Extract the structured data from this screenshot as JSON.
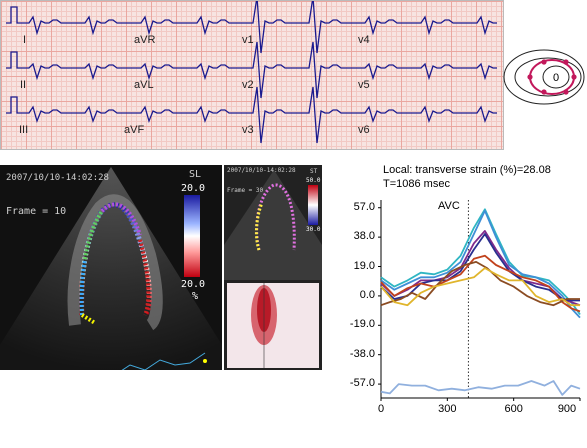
{
  "ecg": {
    "leads": [
      "I",
      "aVR",
      "v1",
      "v4",
      "II",
      "aVL",
      "v2",
      "v5",
      "III",
      "aVF",
      "v3",
      "v6"
    ]
  },
  "orientation_icon": {
    "label": "0"
  },
  "echo_left": {
    "timestamp": "2007/10/10-14:02:28",
    "frame": "Frame = 10",
    "scale_label": "SL",
    "scale_top": "20.0",
    "scale_bottom": "20.0",
    "scale_unit": "%"
  },
  "echo_right": {
    "timestamp": "2007/10/10-14:02:28",
    "frame": "Frame = 30",
    "scale_label": "ST",
    "scale_top": "50.0",
    "scale_bottom": "30.0"
  },
  "strain_plot": {
    "header_line1": "Local: transverse strain (%)=28.08",
    "header_line2": "T=1086 msec",
    "marker_label": "AVC"
  },
  "chart_data": {
    "type": "line",
    "title": "Local: transverse strain (%)=28.08",
    "xlabel": "",
    "ylabel": "",
    "xlim": [
      0,
      900
    ],
    "ylim": [
      -66,
      62
    ],
    "yticks": [
      57.0,
      38.0,
      19.0,
      0.0,
      -19.0,
      -38.0,
      -57.0
    ],
    "ytick_labels": [
      "57.0",
      "38.0",
      "19.0",
      "0.0",
      "-19.0",
      "-38.0",
      "-57.0"
    ],
    "xticks": [
      0,
      300,
      600,
      900
    ],
    "avc_x": 395,
    "series": [
      {
        "color": "#2fb6c3",
        "x": [
          0,
          60,
          120,
          180,
          240,
          300,
          360,
          420,
          470,
          520,
          580,
          640,
          700,
          760,
          820,
          860,
          900
        ],
        "y": [
          12,
          6,
          10,
          15,
          14,
          17,
          26,
          44,
          56,
          40,
          22,
          13,
          12,
          10,
          2,
          -4,
          -12
        ]
      },
      {
        "color": "#3f8fd6",
        "x": [
          0,
          60,
          120,
          180,
          240,
          300,
          360,
          420,
          470,
          520,
          580,
          640,
          700,
          760,
          820,
          860,
          900
        ],
        "y": [
          10,
          4,
          8,
          12,
          12,
          15,
          22,
          40,
          55,
          38,
          20,
          14,
          12,
          8,
          0,
          -8,
          -14
        ]
      },
      {
        "color": "#7e2a8c",
        "x": [
          0,
          60,
          120,
          180,
          240,
          300,
          360,
          420,
          470,
          520,
          580,
          640,
          700,
          760,
          820,
          860,
          900
        ],
        "y": [
          8,
          0,
          4,
          10,
          10,
          12,
          18,
          34,
          42,
          30,
          18,
          10,
          8,
          6,
          -2,
          -4,
          -6
        ]
      },
      {
        "color": "#2a2f8f",
        "x": [
          0,
          60,
          120,
          180,
          240,
          300,
          360,
          420,
          470,
          520,
          580,
          640,
          700,
          760,
          820,
          860,
          900
        ],
        "y": [
          6,
          -2,
          0,
          8,
          10,
          10,
          16,
          30,
          40,
          28,
          16,
          10,
          6,
          4,
          -2,
          -3,
          -3
        ]
      },
      {
        "color": "#c1421c",
        "x": [
          0,
          60,
          120,
          180,
          240,
          300,
          360,
          420,
          470,
          520,
          580,
          640,
          700,
          760,
          820,
          860,
          900
        ],
        "y": [
          9,
          0,
          5,
          8,
          6,
          10,
          14,
          24,
          26,
          20,
          16,
          12,
          10,
          6,
          -4,
          -8,
          -10
        ]
      },
      {
        "color": "#8b4c22",
        "x": [
          0,
          40,
          90,
          140,
          200,
          260,
          320,
          380,
          430,
          480,
          540,
          600,
          660,
          720,
          780,
          840,
          900
        ],
        "y": [
          -6,
          -4,
          -2,
          2,
          -2,
          8,
          16,
          20,
          22,
          18,
          10,
          6,
          0,
          -4,
          -6,
          -2,
          -2
        ]
      },
      {
        "color": "#e0b52c",
        "x": [
          0,
          60,
          120,
          180,
          240,
          300,
          360,
          420,
          470,
          520,
          580,
          640,
          700,
          760,
          820,
          860,
          900
        ],
        "y": [
          6,
          -4,
          -6,
          2,
          6,
          8,
          10,
          12,
          18,
          14,
          10,
          10,
          0,
          -4,
          -2,
          -6,
          -6
        ]
      },
      {
        "color": "#90b0de",
        "x": [
          0,
          40,
          80,
          140,
          200,
          260,
          320,
          380,
          440,
          500,
          560,
          620,
          680,
          740,
          780,
          820,
          860,
          900
        ],
        "y": [
          -62,
          -63,
          -57,
          -58,
          -58,
          -61,
          -60,
          -61,
          -59,
          -60,
          -58,
          -58,
          -55,
          -58,
          -55,
          -64,
          -58,
          -60
        ]
      }
    ]
  }
}
